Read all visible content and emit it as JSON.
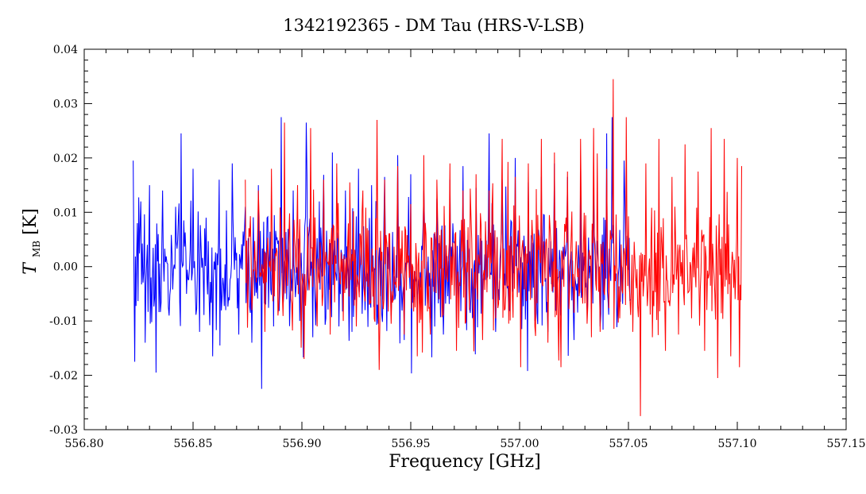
{
  "chart_data": {
    "type": "line",
    "title": "1342192365 - DM Tau (HRS-V-LSB)",
    "xlabel": "Frequency [GHz]",
    "ylabel": {
      "symbol": "T",
      "subscript": "MB",
      "unit": "[K]"
    },
    "xlim": [
      556.8,
      557.15
    ],
    "ylim": [
      -0.03,
      0.04
    ],
    "x_ticks": [
      556.8,
      556.85,
      556.9,
      556.95,
      557.0,
      557.05,
      557.1,
      557.15
    ],
    "x_tick_labels": [
      "556.80",
      "556.85",
      "556.90",
      "556.95",
      "557.00",
      "557.05",
      "557.10",
      "557.15"
    ],
    "y_ticks": [
      -0.03,
      -0.02,
      -0.01,
      0.0,
      0.01,
      0.02,
      0.03,
      0.04
    ],
    "y_tick_labels": [
      "-0.03",
      "-0.02",
      "-0.01",
      "0.00",
      "0.01",
      "0.02",
      "0.03",
      "0.04"
    ],
    "grid": false,
    "legend": "none",
    "series": [
      {
        "color": "#0000ff",
        "x": [
          556.8225,
          556.8232,
          556.8244,
          556.826,
          556.828,
          556.83,
          556.833,
          556.836,
          556.839,
          556.842,
          556.8445,
          556.847,
          556.85,
          556.853,
          556.856,
          556.859,
          556.862,
          556.865,
          556.868,
          556.871,
          556.874,
          556.877,
          556.88,
          556.8815,
          556.884,
          556.887,
          556.8905,
          556.893,
          556.896,
          556.899,
          556.902,
          556.905,
          556.908,
          556.911,
          556.914,
          556.917,
          556.92,
          556.923,
          556.926,
          556.929,
          556.932,
          556.935,
          556.938,
          556.941,
          556.944,
          556.947,
          556.95,
          556.953,
          556.956,
          556.959,
          556.962,
          556.965,
          556.968,
          556.971,
          556.974,
          556.977,
          556.98,
          556.983,
          556.986,
          556.989,
          556.992,
          556.995,
          556.998,
          557.001,
          557.004,
          557.007,
          557.01,
          557.013,
          557.016,
          557.019,
          557.022,
          557.025,
          557.028,
          557.031,
          557.034,
          557.037,
          557.04,
          557.0425,
          557.045,
          557.048,
          557.051
        ],
        "y": [
          0.0195,
          -0.0175,
          0.008,
          0.012,
          -0.014,
          0.015,
          -0.0195,
          0.014,
          -0.009,
          0.011,
          0.0245,
          -0.005,
          0.018,
          -0.012,
          0.009,
          -0.0165,
          0.016,
          -0.008,
          0.019,
          -0.0125,
          0.011,
          -0.014,
          0.015,
          -0.0225,
          0.009,
          -0.011,
          0.0275,
          -0.006,
          0.014,
          -0.01,
          0.0265,
          -0.013,
          0.012,
          -0.0095,
          0.021,
          -0.011,
          0.014,
          -0.012,
          0.018,
          -0.008,
          0.015,
          -0.0105,
          0.0165,
          -0.009,
          0.0205,
          -0.0135,
          0.017,
          -0.008,
          0.014,
          -0.0095,
          0.0125,
          -0.0125,
          0.016,
          -0.011,
          0.0185,
          -0.0075,
          0.0145,
          -0.009,
          0.0245,
          -0.012,
          0.016,
          -0.008,
          0.02,
          -0.0115,
          0.0155,
          -0.01,
          0.0165,
          -0.012,
          0.019,
          -0.009,
          0.0165,
          -0.0135,
          0.0175,
          -0.008,
          0.0145,
          -0.011,
          0.0245,
          0.0275,
          -0.0075,
          0.0195,
          -0.006
        ]
      },
      {
        "color": "#ff0000",
        "x": [
          556.874,
          556.877,
          556.88,
          556.883,
          556.886,
          556.889,
          556.892,
          556.895,
          556.898,
          556.901,
          556.904,
          556.907,
          556.91,
          556.913,
          556.916,
          556.919,
          556.922,
          556.925,
          556.928,
          556.931,
          556.9345,
          556.9355,
          556.938,
          556.941,
          556.944,
          556.947,
          556.95,
          556.953,
          556.956,
          556.959,
          556.962,
          556.965,
          556.968,
          556.971,
          556.974,
          556.977,
          556.98,
          556.983,
          556.986,
          556.989,
          556.992,
          556.995,
          556.998,
          557.0005,
          557.004,
          557.007,
          557.01,
          557.013,
          557.016,
          557.019,
          557.022,
          557.025,
          557.028,
          557.031,
          557.034,
          557.037,
          557.04,
          557.043,
          557.046,
          557.049,
          557.052,
          557.0555,
          557.058,
          557.061,
          557.064,
          557.067,
          557.07,
          557.073,
          557.076,
          557.079,
          557.082,
          557.085,
          557.088,
          557.091,
          557.094,
          557.097,
          557.1,
          557.102
        ],
        "y": [
          0.016,
          -0.008,
          0.014,
          -0.012,
          0.018,
          -0.009,
          0.0265,
          -0.006,
          0.015,
          -0.017,
          0.0255,
          -0.011,
          0.016,
          -0.0125,
          0.019,
          -0.01,
          0.0155,
          -0.011,
          0.014,
          -0.007,
          0.027,
          -0.019,
          0.016,
          -0.0105,
          0.0185,
          -0.0125,
          0.0115,
          -0.0165,
          0.0205,
          -0.0125,
          0.016,
          -0.009,
          0.019,
          -0.0155,
          0.014,
          -0.008,
          0.017,
          -0.0135,
          0.014,
          -0.0095,
          0.0235,
          -0.0105,
          0.0165,
          -0.0185,
          0.019,
          -0.011,
          0.0235,
          -0.014,
          0.021,
          -0.0185,
          0.0175,
          -0.0085,
          0.0235,
          -0.0105,
          0.0255,
          -0.012,
          0.018,
          0.0345,
          -0.0095,
          0.0275,
          -0.012,
          -0.0275,
          0.019,
          -0.013,
          0.0235,
          -0.0155,
          0.0165,
          -0.0125,
          0.0225,
          -0.0095,
          0.0175,
          -0.0155,
          0.0255,
          -0.0205,
          0.0235,
          -0.0165,
          0.02,
          0.0185
        ]
      }
    ]
  }
}
